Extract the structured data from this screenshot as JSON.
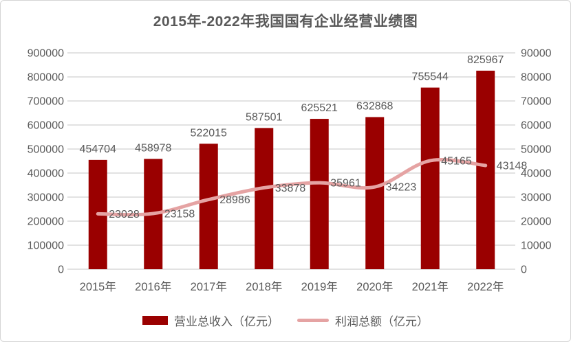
{
  "chart_data": {
    "type": "combo",
    "title": "2015年-2022年我国国有企业经营业绩图",
    "categories": [
      "2015年",
      "2016年",
      "2017年",
      "2018年",
      "2019年",
      "2020年",
      "2021年",
      "2022年"
    ],
    "series": [
      {
        "name": "营业总收入（亿元）",
        "type": "bar",
        "axis": "left",
        "color": "#9a0000",
        "values": [
          454704,
          458978,
          522015,
          587501,
          625521,
          632868,
          755544,
          825967
        ]
      },
      {
        "name": "利润总额（亿元）",
        "type": "line",
        "axis": "right",
        "color": "#e5a3a3",
        "values": [
          23028,
          23158,
          28986,
          33878,
          35961,
          34223,
          45165,
          43148
        ]
      }
    ],
    "left_axis": {
      "min": 0,
      "max": 900000,
      "step": 100000,
      "ticks": [
        "0",
        "100000",
        "200000",
        "300000",
        "400000",
        "500000",
        "600000",
        "700000",
        "800000",
        "900000"
      ]
    },
    "right_axis": {
      "min": 0,
      "max": 90000,
      "step": 10000,
      "ticks": [
        "0",
        "10000",
        "20000",
        "30000",
        "40000",
        "50000",
        "60000",
        "70000",
        "80000",
        "90000"
      ]
    },
    "grid": true,
    "legend_position": "bottom",
    "colors": {
      "text": "#595959",
      "gridline": "#d9d9d9",
      "card_border": "#d4d4d4"
    }
  }
}
